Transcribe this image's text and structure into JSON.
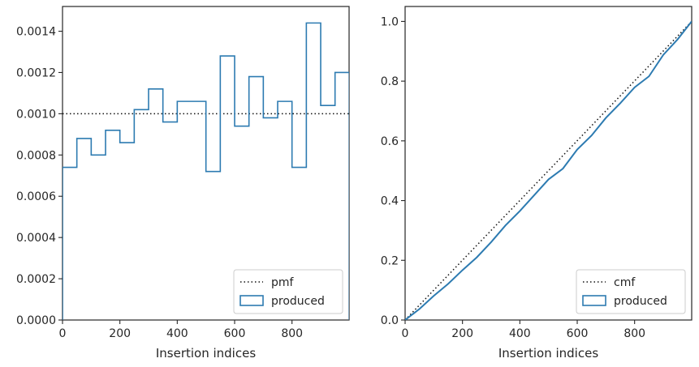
{
  "chart_data": [
    {
      "type": "step-histogram",
      "xlabel": "Insertion indices",
      "ylabel": "",
      "xlim": [
        0,
        999
      ],
      "ylim": [
        0,
        0.00152
      ],
      "xticks": [
        0,
        200,
        400,
        600,
        800
      ],
      "yticks": [
        0,
        0.0002,
        0.0004,
        0.0006,
        0.0008,
        0.001,
        0.0012,
        0.0014
      ],
      "ytick_labels": [
        "0.0000",
        "0.0002",
        "0.0004",
        "0.0006",
        "0.0008",
        "0.0010",
        "0.0012",
        "0.0014"
      ],
      "grid": false,
      "legend_position": "lower-right",
      "bin_edges": [
        0,
        50,
        100,
        150,
        200,
        250,
        300,
        350,
        400,
        450,
        500,
        550,
        600,
        650,
        700,
        750,
        800,
        850,
        900,
        950,
        1000
      ],
      "series": [
        {
          "name": "pmf",
          "style": "dotted",
          "color": "#111111",
          "values": [
            0.001
          ]
        },
        {
          "name": "produced",
          "style": "step",
          "color": "#2d7bb1",
          "values": [
            0.00074,
            0.00088,
            0.0008,
            0.00092,
            0.00086,
            0.00102,
            0.00112,
            0.00096,
            0.00106,
            0.00106,
            0.00072,
            0.00128,
            0.00094,
            0.00118,
            0.00098,
            0.00106,
            0.00074,
            0.00144,
            0.00104,
            0.0012
          ]
        }
      ]
    },
    {
      "type": "line",
      "xlabel": "Insertion indices",
      "ylabel": "",
      "xlim": [
        0,
        999
      ],
      "ylim": [
        0,
        1.05
      ],
      "xticks": [
        0,
        200,
        400,
        600,
        800
      ],
      "yticks": [
        0,
        0.2,
        0.4,
        0.6,
        0.8,
        1.0
      ],
      "ytick_labels": [
        "0.0",
        "0.2",
        "0.4",
        "0.6",
        "0.8",
        "1.0"
      ],
      "grid": false,
      "legend_position": "lower-right",
      "series": [
        {
          "name": "cmf",
          "style": "dotted",
          "color": "#111111",
          "x": [
            0,
            999
          ],
          "y": [
            0,
            1.0
          ]
        },
        {
          "name": "produced",
          "style": "line",
          "color": "#2d7bb1",
          "x": [
            0,
            50,
            100,
            150,
            200,
            250,
            300,
            350,
            400,
            450,
            500,
            550,
            600,
            650,
            700,
            750,
            800,
            850,
            900,
            950,
            999
          ],
          "y": [
            0,
            0.037,
            0.081,
            0.121,
            0.167,
            0.21,
            0.261,
            0.317,
            0.365,
            0.418,
            0.471,
            0.507,
            0.571,
            0.618,
            0.677,
            0.726,
            0.779,
            0.816,
            0.888,
            0.94,
            1.0
          ]
        }
      ]
    }
  ]
}
